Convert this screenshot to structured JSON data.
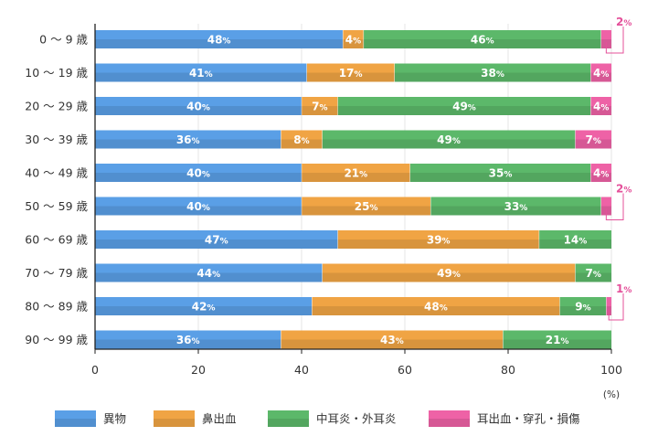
{
  "chart_data": {
    "type": "bar",
    "orientation": "horizontal",
    "stacked": true,
    "categories": [
      "0 〜 9 歳",
      "10 〜 19 歳",
      "20 〜 29 歳",
      "30 〜 39 歳",
      "40 〜 49 歳",
      "50 〜 59 歳",
      "60 〜 69 歳",
      "70 〜 79 歳",
      "80 〜 89 歳",
      "90 〜 99 歳"
    ],
    "series": [
      {
        "name": "異物",
        "color": "#5a9fe6",
        "values": [
          48,
          41,
          40,
          36,
          40,
          40,
          47,
          44,
          42,
          36
        ]
      },
      {
        "name": "鼻出血",
        "color": "#f0a444",
        "values": [
          4,
          17,
          7,
          8,
          21,
          25,
          39,
          49,
          48,
          43
        ]
      },
      {
        "name": "中耳炎・外耳炎",
        "color": "#5cb86a",
        "values": [
          46,
          38,
          49,
          49,
          35,
          33,
          14,
          7,
          9,
          21
        ]
      },
      {
        "name": "耳出血・穿孔・損傷",
        "color": "#ee62a6",
        "values": [
          2,
          4,
          4,
          7,
          4,
          2,
          0,
          0,
          1,
          0
        ]
      }
    ],
    "callouts": [
      {
        "row": 0,
        "series": 3,
        "text": "2"
      },
      {
        "row": 5,
        "series": 3,
        "text": "2"
      },
      {
        "row": 8,
        "series": 3,
        "text": "1"
      }
    ],
    "value_suffix": "%",
    "xlim": [
      0,
      100
    ],
    "xticks": [
      0,
      20,
      40,
      60,
      80,
      100
    ],
    "x_unit": "(%)",
    "legend_position": "bottom"
  }
}
